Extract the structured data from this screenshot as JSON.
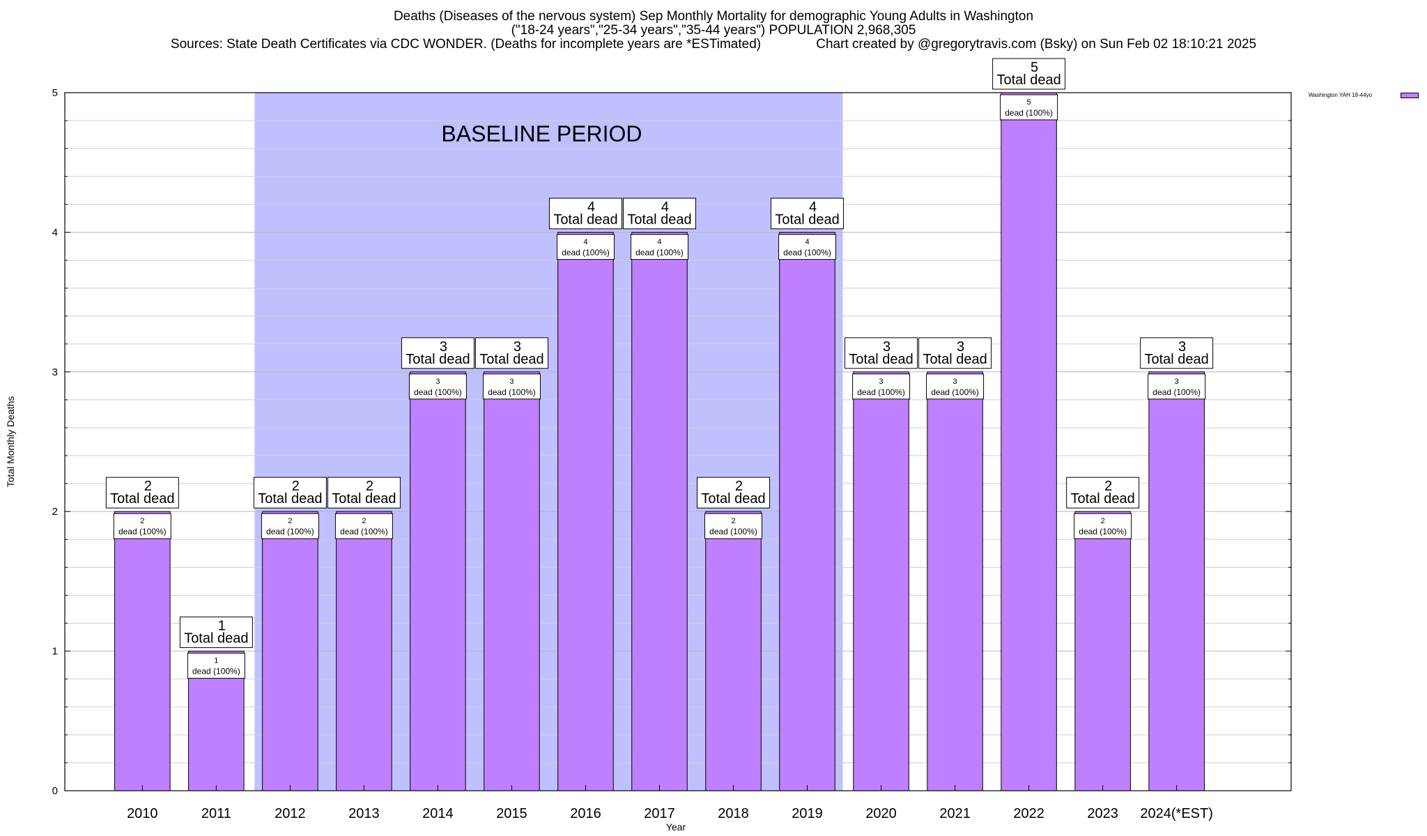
{
  "header": {
    "title_line1": "Deaths (Diseases of the nervous system) Sep Monthly Mortality for demographic Young Adults in Washington",
    "title_line2": "(\"18-24 years\",\"25-34 years\",\"35-44 years\") POPULATION 2,968,305",
    "title_line3": "Sources: State Death Certificates via CDC WONDER. (Deaths for incomplete years are *ESTimated)               Chart created by @gregorytravis.com (Bsky) on Sun Feb 02 18:10:21 2025"
  },
  "chart_data": {
    "type": "bar",
    "xlabel": "Year",
    "ylabel": "Total Monthly Deaths",
    "ylim": [
      0,
      5
    ],
    "yticks": [
      "0",
      "1",
      "2",
      "3",
      "4",
      "5"
    ],
    "categories": [
      "2010",
      "2011",
      "2012",
      "2013",
      "2014",
      "2015",
      "2016",
      "2017",
      "2018",
      "2019",
      "2020",
      "2021",
      "2022",
      "2023",
      "2024(*EST)"
    ],
    "series": [
      {
        "name": "Washington YAH 18-44yo",
        "values": [
          2,
          1,
          2,
          2,
          3,
          3,
          4,
          4,
          2,
          4,
          3,
          3,
          5,
          2,
          3
        ],
        "inner_labels": [
          "2",
          "1",
          "2",
          "2",
          "3",
          "3",
          "4",
          "4",
          "2",
          "4",
          "3",
          "3",
          "5",
          "2",
          "3"
        ],
        "inner_label_suffix": "dead (100%)"
      }
    ],
    "total_label_suffix": "Total dead",
    "baseline": {
      "label": "BASELINE PERIOD",
      "from_category": "2012",
      "to_category": "2019"
    },
    "legend": {
      "position": "top-right"
    },
    "grid": true,
    "colors": {
      "bar": "#bf80ff",
      "baseline": "#c0c0ff",
      "legend_swatch": "#bf80ff"
    }
  }
}
